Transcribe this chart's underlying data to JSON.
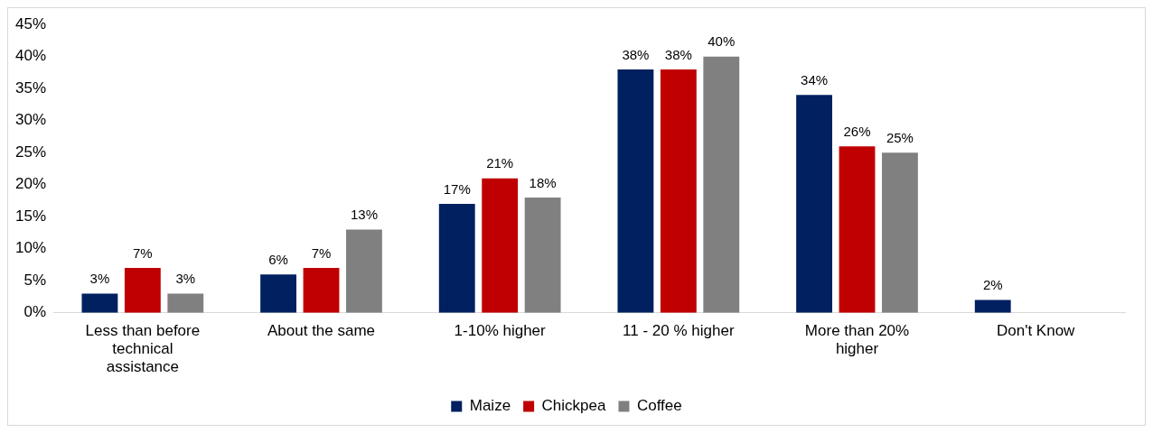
{
  "chart_data": {
    "type": "bar",
    "categories": [
      "Less than before technical assistance",
      "About the same",
      "1-10% higher",
      "11 - 20 % higher",
      "More than 20% higher",
      "Don't Know"
    ],
    "series": [
      {
        "name": "Maize",
        "color": "#002060",
        "values": [
          3,
          6,
          17,
          38,
          34,
          2
        ],
        "value_labels": [
          "3%",
          "6%",
          "17%",
          "38%",
          "34%",
          "2%"
        ]
      },
      {
        "name": "Chickpea",
        "color": "#c00000",
        "values": [
          7,
          7,
          21,
          38,
          26,
          null
        ],
        "value_labels": [
          "7%",
          "7%",
          "21%",
          "38%",
          "26%",
          null
        ]
      },
      {
        "name": "Coffee",
        "color": "#808080",
        "values": [
          3,
          13,
          18,
          40,
          25,
          null
        ],
        "value_labels": [
          "3%",
          "13%",
          "18%",
          "40%",
          "25%",
          null
        ]
      }
    ],
    "ylim": [
      0,
      45
    ],
    "yticks": [
      {
        "value": 0,
        "label": "0%"
      },
      {
        "value": 5,
        "label": "5%"
      },
      {
        "value": 10,
        "label": "10%"
      },
      {
        "value": 15,
        "label": "15%"
      },
      {
        "value": 20,
        "label": "20%"
      },
      {
        "value": 25,
        "label": "25%"
      },
      {
        "value": 30,
        "label": "30%"
      },
      {
        "value": 35,
        "label": "35%"
      },
      {
        "value": 40,
        "label": "40%"
      },
      {
        "value": 45,
        "label": "45%"
      }
    ],
    "grid": false,
    "legend": "bottom"
  }
}
